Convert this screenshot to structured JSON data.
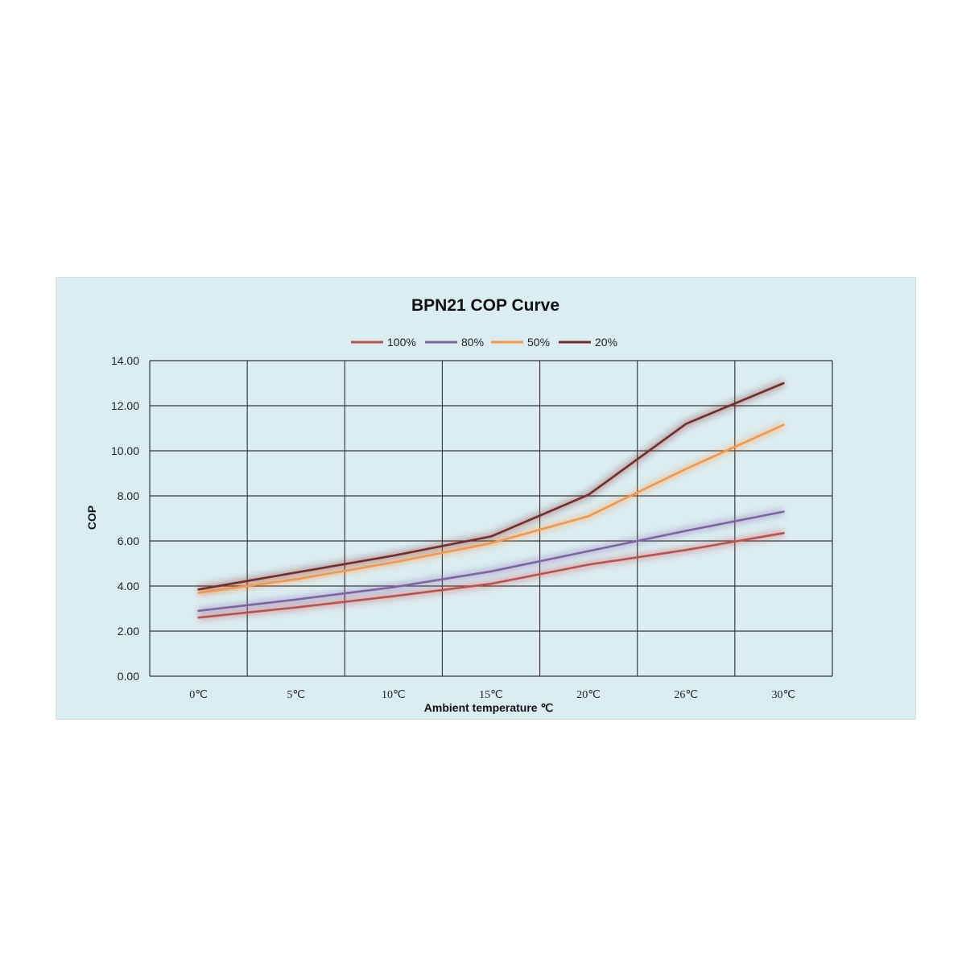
{
  "chart_data": {
    "type": "line",
    "title": "BPN21 COP Curve",
    "xlabel": "Ambient temperature ℃",
    "ylabel": "COP",
    "categories": [
      "0℃",
      "5℃",
      "10℃",
      "15℃",
      "20℃",
      "26℃",
      "30℃"
    ],
    "y_ticks": [
      "0.00",
      "2.00",
      "4.00",
      "6.00",
      "8.00",
      "10.00",
      "12.00",
      "14.00"
    ],
    "ylim": [
      0,
      14
    ],
    "grid": true,
    "legend_position": "top",
    "series": [
      {
        "name": "100%",
        "color": "#c0504d",
        "values": [
          2.6,
          3.05,
          3.55,
          4.1,
          4.95,
          5.6,
          6.35
        ]
      },
      {
        "name": "80%",
        "color": "#8064a2",
        "values": [
          2.9,
          3.4,
          3.95,
          4.65,
          5.55,
          6.45,
          7.3
        ]
      },
      {
        "name": "50%",
        "color": "#f79646",
        "values": [
          3.7,
          4.3,
          5.05,
          5.9,
          7.1,
          9.2,
          11.15
        ]
      },
      {
        "name": "20%",
        "color": "#772c2a",
        "values": [
          3.85,
          4.6,
          5.35,
          6.2,
          8.05,
          11.2,
          13.0
        ]
      }
    ]
  }
}
